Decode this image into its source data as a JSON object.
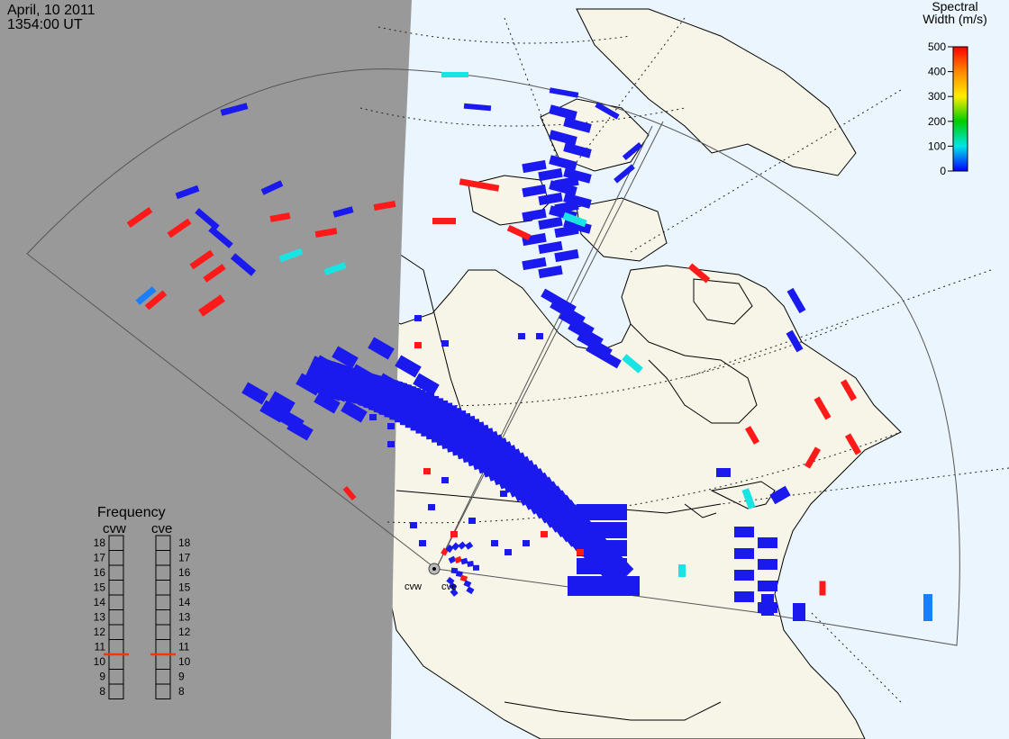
{
  "header": {
    "date": "April, 10 2011",
    "time": "1354:00 UT"
  },
  "colorbar": {
    "title_line1": "Spectral",
    "title_line2": "Width (m/s)",
    "ticks": [
      "500",
      "400",
      "300",
      "200",
      "100",
      "0"
    ]
  },
  "frequency_panel": {
    "title": "Frequency",
    "radars": [
      {
        "id": "cvw",
        "label": "cvw",
        "selected_mhz": 11
      },
      {
        "id": "cve",
        "label": "cve",
        "selected_mhz": 11
      }
    ],
    "scale": [
      "18",
      "17",
      "16",
      "15",
      "14",
      "13",
      "12",
      "11",
      "10",
      "9",
      "8"
    ]
  },
  "radar_sites": [
    {
      "id": "cvw",
      "label": "cvw"
    },
    {
      "id": "cve",
      "label": "cve"
    }
  ],
  "colors": {
    "nightside": "#999999",
    "dayside_ocean": "#eaf5fd",
    "land": "#f7f5e8",
    "marker": "#ff3300",
    "scale_blue": "#0000ff",
    "scale_cyan": "#00e6e6",
    "scale_green": "#00cc00",
    "scale_yellow": "#ffee00",
    "scale_red": "#ff0000"
  }
}
